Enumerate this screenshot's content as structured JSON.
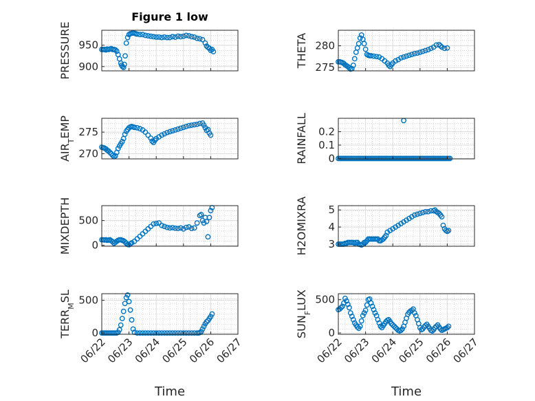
{
  "figure": {
    "title": "Figure 1 low",
    "marker_color": "#0072BD"
  },
  "chart_data": [
    {
      "type": "scatter",
      "ylabel": "PRESSURE",
      "ylabel_sub": "",
      "ylim": [
        890,
        985
      ],
      "yticks": [
        900,
        950
      ],
      "xlim": [
        0,
        5
      ],
      "xtick_labels": [
        "06/22",
        "06/23",
        "06/24",
        "06/25",
        "06/26",
        "06/27"
      ],
      "show_xtick_labels": false,
      "x": [
        0,
        0.05,
        0.1,
        0.15,
        0.2,
        0.25,
        0.3,
        0.35,
        0.4,
        0.45,
        0.5,
        0.55,
        0.6,
        0.65,
        0.7,
        0.73,
        0.76,
        0.8,
        0.83,
        0.86,
        0.9,
        0.95,
        1.0,
        1.05,
        1.1,
        1.15,
        1.2,
        1.25,
        1.3,
        1.4,
        1.5,
        1.6,
        1.7,
        1.8,
        1.9,
        2.0,
        2.1,
        2.2,
        2.3,
        2.4,
        2.5,
        2.6,
        2.7,
        2.8,
        2.9,
        3.0,
        3.1,
        3.2,
        3.3,
        3.4,
        3.5,
        3.6,
        3.7,
        3.8,
        3.85,
        3.9,
        3.95,
        4.0,
        4.05,
        4.1
      ],
      "y": [
        940,
        940,
        940,
        939,
        941,
        940,
        941,
        942,
        940,
        940,
        939,
        936,
        928,
        918,
        908,
        903,
        900,
        898,
        905,
        925,
        955,
        968,
        975,
        977,
        978,
        979,
        978,
        977,
        976,
        975,
        975,
        973,
        972,
        971,
        970,
        969,
        969,
        968,
        969,
        968,
        968,
        970,
        969,
        971,
        970,
        971,
        973,
        972,
        970,
        969,
        966,
        965,
        963,
        955,
        948,
        945,
        943,
        938,
        940,
        935
      ]
    },
    {
      "type": "scatter",
      "ylabel": "THETA",
      "ylabel_sub": "",
      "ylim": [
        274.2,
        283.6
      ],
      "yticks": [
        275,
        280
      ],
      "xlim": [
        0,
        5
      ],
      "xtick_labels": [
        "06/22",
        "06/23",
        "06/24",
        "06/25",
        "06/26",
        "06/27"
      ],
      "show_xtick_labels": false,
      "x": [
        0,
        0.05,
        0.1,
        0.15,
        0.2,
        0.25,
        0.3,
        0.35,
        0.4,
        0.45,
        0.5,
        0.55,
        0.6,
        0.65,
        0.7,
        0.75,
        0.8,
        0.85,
        0.9,
        0.95,
        1.0,
        1.05,
        1.1,
        1.15,
        1.2,
        1.3,
        1.4,
        1.5,
        1.6,
        1.7,
        1.8,
        1.85,
        1.9,
        1.95,
        2.0,
        2.1,
        2.2,
        2.3,
        2.4,
        2.5,
        2.6,
        2.7,
        2.8,
        2.9,
        3.0,
        3.1,
        3.2,
        3.3,
        3.4,
        3.5,
        3.6,
        3.7,
        3.75,
        3.8,
        3.9,
        4.0
      ],
      "y": [
        276.3,
        276.3,
        276.2,
        276.1,
        275.9,
        275.6,
        275.4,
        275.2,
        274.9,
        274.6,
        274.7,
        275.5,
        277.0,
        278.5,
        279.5,
        280.5,
        281.8,
        282.5,
        281.5,
        280.5,
        279.2,
        278.0,
        277.8,
        277.7,
        277.7,
        277.6,
        277.5,
        277.4,
        277.0,
        276.5,
        276.0,
        275.5,
        275.2,
        275.6,
        276.0,
        276.5,
        276.8,
        277.2,
        277.4,
        277.6,
        277.8,
        278.0,
        278.2,
        278.3,
        278.5,
        278.7,
        278.9,
        279.1,
        279.4,
        279.7,
        280.2,
        280.3,
        280.0,
        279.7,
        279.4,
        279.5
      ]
    },
    {
      "type": "scatter",
      "ylabel": "AIR",
      "ylabel_sub": "T",
      "ylabel_after": "EMP",
      "ylim": [
        268.8,
        278.2
      ],
      "yticks": [
        270,
        275
      ],
      "xlim": [
        0,
        5
      ],
      "xtick_labels": [
        "06/22",
        "06/23",
        "06/24",
        "06/25",
        "06/26",
        "06/27"
      ],
      "show_xtick_labels": false,
      "x": [
        0,
        0.05,
        0.1,
        0.15,
        0.2,
        0.25,
        0.3,
        0.35,
        0.4,
        0.45,
        0.5,
        0.55,
        0.6,
        0.65,
        0.7,
        0.75,
        0.8,
        0.85,
        0.9,
        0.95,
        1.0,
        1.05,
        1.1,
        1.15,
        1.2,
        1.3,
        1.4,
        1.5,
        1.6,
        1.7,
        1.8,
        1.85,
        1.9,
        1.95,
        2.0,
        2.1,
        2.2,
        2.3,
        2.4,
        2.5,
        2.6,
        2.7,
        2.8,
        2.9,
        3.0,
        3.1,
        3.2,
        3.3,
        3.4,
        3.5,
        3.6,
        3.7,
        3.75,
        3.8,
        3.85,
        3.9,
        3.95,
        4.0
      ],
      "y": [
        271.5,
        271.4,
        271.3,
        271.1,
        270.8,
        270.6,
        270.3,
        270.0,
        269.6,
        269.3,
        269.5,
        270.3,
        271.2,
        271.8,
        272.3,
        272.8,
        273.5,
        274.5,
        275.2,
        275.6,
        276.0,
        276.2,
        276.3,
        276.2,
        276.1,
        276.0,
        275.8,
        275.5,
        275.0,
        274.3,
        273.6,
        272.9,
        272.6,
        273.1,
        273.5,
        273.9,
        274.3,
        274.6,
        274.9,
        275.1,
        275.3,
        275.5,
        275.7,
        275.9,
        276.1,
        276.3,
        276.5,
        276.6,
        276.7,
        276.8,
        277.0,
        277.1,
        276.6,
        276.0,
        275.4,
        275.6,
        274.8,
        274.3
      ]
    },
    {
      "type": "scatter",
      "ylabel": "RAINFALL",
      "ylabel_sub": "",
      "ylim": [
        -0.003,
        0.3
      ],
      "yticks": [
        0,
        0.1,
        0.2
      ],
      "ytick_labels": [
        "0",
        "0.1",
        "0.2"
      ],
      "xlim": [
        0,
        5
      ],
      "xtick_labels": [
        "06/22",
        "06/23",
        "06/24",
        "06/25",
        "06/26",
        "06/27"
      ],
      "show_xtick_labels": false,
      "x": [
        0,
        0.05,
        0.1,
        0.15,
        0.2,
        0.25,
        0.3,
        0.35,
        0.4,
        0.45,
        0.5,
        0.55,
        0.6,
        0.65,
        0.7,
        0.75,
        0.8,
        0.85,
        0.9,
        0.95,
        1.0,
        1.05,
        1.1,
        1.15,
        1.2,
        1.25,
        1.3,
        1.35,
        1.4,
        1.45,
        1.5,
        1.55,
        1.6,
        1.65,
        1.7,
        1.75,
        1.8,
        1.85,
        1.9,
        1.95,
        2.0,
        2.05,
        2.1,
        2.15,
        2.2,
        2.25,
        2.3,
        2.35,
        2.4,
        2.45,
        2.5,
        2.55,
        2.6,
        2.65,
        2.7,
        2.75,
        2.8,
        2.85,
        2.9,
        2.95,
        3.0,
        3.05,
        3.1,
        3.15,
        3.2,
        3.25,
        3.3,
        3.35,
        3.4,
        3.45,
        3.5,
        3.55,
        3.6,
        3.65,
        3.7,
        3.75,
        3.8,
        3.85,
        3.9,
        3.95,
        4.0,
        4.05,
        4.1,
        2.4
      ],
      "y": [
        0,
        0,
        0,
        0,
        0,
        0,
        0,
        0,
        0,
        0,
        0,
        0,
        0,
        0,
        0,
        0,
        0,
        0,
        0,
        0,
        0,
        0,
        0,
        0,
        0,
        0,
        0,
        0,
        0,
        0,
        0,
        0,
        0,
        0,
        0,
        0,
        0,
        0,
        0,
        0,
        0,
        0,
        0,
        0,
        0,
        0,
        0,
        0,
        0,
        0,
        0,
        0,
        0,
        0,
        0,
        0,
        0,
        0,
        0,
        0,
        0,
        0,
        0,
        0,
        0,
        0,
        0,
        0,
        0,
        0,
        0,
        0,
        0,
        0,
        0,
        0,
        0,
        0,
        0,
        0,
        0,
        0,
        0,
        0.283
      ]
    },
    {
      "type": "scatter",
      "ylabel": "MIXDEPTH",
      "ylabel_sub": "",
      "ylim": [
        -20,
        800
      ],
      "yticks": [
        0,
        500
      ],
      "xlim": [
        0,
        5
      ],
      "xtick_labels": [
        "06/22",
        "06/23",
        "06/24",
        "06/25",
        "06/26",
        "06/27"
      ],
      "show_xtick_labels": false,
      "x": [
        0,
        0.05,
        0.1,
        0.15,
        0.2,
        0.25,
        0.3,
        0.35,
        0.4,
        0.45,
        0.5,
        0.55,
        0.6,
        0.65,
        0.7,
        0.75,
        0.8,
        0.85,
        0.9,
        0.95,
        1.0,
        1.05,
        1.1,
        1.2,
        1.3,
        1.4,
        1.5,
        1.6,
        1.7,
        1.8,
        1.9,
        2.0,
        2.1,
        2.2,
        2.3,
        2.4,
        2.5,
        2.6,
        2.7,
        2.8,
        2.9,
        3.0,
        3.1,
        3.2,
        3.3,
        3.4,
        3.5,
        3.6,
        3.65,
        3.7,
        3.75,
        3.8,
        3.85,
        3.9,
        3.95,
        4.0,
        4.05
      ],
      "y": [
        110,
        110,
        105,
        110,
        100,
        105,
        110,
        90,
        70,
        40,
        60,
        80,
        100,
        110,
        110,
        100,
        90,
        70,
        40,
        15,
        10,
        30,
        50,
        80,
        130,
        180,
        230,
        280,
        330,
        380,
        430,
        440,
        450,
        400,
        380,
        360,
        350,
        355,
        345,
        340,
        350,
        330,
        360,
        370,
        340,
        350,
        450,
        600,
        620,
        500,
        450,
        560,
        480,
        170,
        560,
        700,
        760
      ]
    },
    {
      "type": "scatter",
      "ylabel": "H2OMIXRA",
      "ylabel_sub": "",
      "ylim": [
        2.88,
        5.25
      ],
      "yticks": [
        3,
        4,
        5
      ],
      "xlim": [
        0,
        5
      ],
      "xtick_labels": [
        "06/22",
        "06/23",
        "06/24",
        "06/25",
        "06/26",
        "06/27"
      ],
      "show_xtick_labels": false,
      "x": [
        0,
        0.05,
        0.1,
        0.15,
        0.2,
        0.25,
        0.3,
        0.35,
        0.4,
        0.45,
        0.5,
        0.55,
        0.6,
        0.65,
        0.7,
        0.75,
        0.8,
        0.85,
        0.9,
        0.95,
        1.0,
        1.05,
        1.1,
        1.15,
        1.2,
        1.25,
        1.3,
        1.35,
        1.4,
        1.45,
        1.5,
        1.55,
        1.6,
        1.65,
        1.7,
        1.75,
        1.8,
        1.9,
        2.0,
        2.1,
        2.2,
        2.3,
        2.4,
        2.5,
        2.6,
        2.7,
        2.8,
        2.9,
        3.0,
        3.1,
        3.2,
        3.3,
        3.4,
        3.5,
        3.55,
        3.6,
        3.65,
        3.7,
        3.75,
        3.8,
        3.85,
        3.9,
        3.95,
        4.0,
        4.05
      ],
      "y": [
        3.0,
        3.0,
        3.0,
        3.0,
        3.0,
        3.05,
        3.05,
        3.1,
        3.1,
        3.1,
        3.1,
        3.1,
        3.05,
        3.1,
        3.1,
        3.0,
        2.98,
        2.95,
        3.0,
        3.1,
        3.1,
        3.2,
        3.3,
        3.3,
        3.3,
        3.3,
        3.3,
        3.3,
        3.3,
        3.3,
        3.2,
        3.2,
        3.25,
        3.3,
        3.4,
        3.5,
        3.7,
        3.8,
        3.9,
        4.0,
        4.1,
        4.2,
        4.3,
        4.4,
        4.5,
        4.6,
        4.7,
        4.75,
        4.8,
        4.85,
        4.9,
        4.9,
        4.95,
        4.95,
        5.0,
        4.9,
        4.85,
        4.8,
        4.7,
        4.6,
        4.1,
        3.9,
        3.8,
        3.75,
        3.8
      ]
    },
    {
      "type": "scatter",
      "ylabel": "TERR",
      "ylabel_sub": "M",
      "ylabel_after": "SL",
      "ylim": [
        -20,
        600
      ],
      "yticks": [
        0,
        500
      ],
      "xlim": [
        0,
        5
      ],
      "xtick_labels": [
        "06/22",
        "06/23",
        "06/24",
        "06/25",
        "06/26",
        "06/27"
      ],
      "show_xtick_labels": true,
      "x": [
        0,
        0.05,
        0.1,
        0.15,
        0.2,
        0.25,
        0.3,
        0.35,
        0.4,
        0.45,
        0.5,
        0.55,
        0.6,
        0.65,
        0.7,
        0.75,
        0.8,
        0.85,
        0.9,
        0.95,
        1.0,
        1.05,
        1.1,
        1.15,
        1.2,
        1.3,
        1.4,
        1.5,
        1.6,
        1.7,
        1.8,
        1.9,
        2.0,
        2.1,
        2.2,
        2.3,
        2.4,
        2.5,
        2.6,
        2.7,
        2.8,
        2.9,
        3.0,
        3.1,
        3.2,
        3.3,
        3.4,
        3.5,
        3.55,
        3.6,
        3.65,
        3.7,
        3.75,
        3.8,
        3.85,
        3.9,
        3.95,
        4.0,
        4.05
      ],
      "y": [
        0,
        0,
        0,
        0,
        0,
        0,
        0,
        0,
        0,
        0,
        0,
        0,
        10,
        50,
        120,
        220,
        330,
        450,
        540,
        580,
        480,
        350,
        200,
        60,
        10,
        0,
        0,
        0,
        0,
        0,
        0,
        0,
        0,
        0,
        0,
        0,
        0,
        0,
        0,
        0,
        0,
        0,
        0,
        0,
        0,
        0,
        0,
        0,
        0,
        5,
        20,
        60,
        100,
        140,
        170,
        190,
        220,
        250,
        290
      ]
    },
    {
      "type": "scatter",
      "ylabel": "SUN",
      "ylabel_sub": "F",
      "ylabel_after": "LUX",
      "ylim": [
        -20,
        590
      ],
      "yticks": [
        0,
        500
      ],
      "xlim": [
        0,
        5
      ],
      "xtick_labels": [
        "06/22",
        "06/23",
        "06/24",
        "06/25",
        "06/26",
        "06/27"
      ],
      "show_xtick_labels": true,
      "x": [
        0,
        0.05,
        0.1,
        0.15,
        0.2,
        0.25,
        0.3,
        0.35,
        0.4,
        0.45,
        0.5,
        0.55,
        0.6,
        0.65,
        0.7,
        0.75,
        0.8,
        0.85,
        0.9,
        0.95,
        1.0,
        1.05,
        1.1,
        1.15,
        1.2,
        1.25,
        1.3,
        1.35,
        1.4,
        1.45,
        1.5,
        1.55,
        1.6,
        1.65,
        1.7,
        1.75,
        1.8,
        1.85,
        1.9,
        1.95,
        2.0,
        2.05,
        2.1,
        2.15,
        2.2,
        2.25,
        2.3,
        2.35,
        2.4,
        2.45,
        2.5,
        2.55,
        2.6,
        2.65,
        2.7,
        2.75,
        2.8,
        2.85,
        2.9,
        2.95,
        3.0,
        3.05,
        3.1,
        3.15,
        3.2,
        3.25,
        3.3,
        3.35,
        3.4,
        3.45,
        3.5,
        3.55,
        3.6,
        3.65,
        3.7,
        3.75,
        3.8,
        3.85,
        3.9,
        3.95,
        4.0,
        4.05
      ],
      "y": [
        350,
        360,
        380,
        400,
        450,
        520,
        480,
        430,
        380,
        300,
        250,
        200,
        150,
        120,
        90,
        70,
        100,
        180,
        260,
        300,
        340,
        420,
        500,
        510,
        450,
        400,
        350,
        300,
        260,
        200,
        150,
        100,
        80,
        110,
        140,
        170,
        190,
        200,
        170,
        140,
        120,
        100,
        80,
        60,
        40,
        30,
        40,
        60,
        100,
        160,
        220,
        280,
        310,
        330,
        340,
        360,
        300,
        260,
        200,
        140,
        80,
        50,
        60,
        90,
        110,
        130,
        100,
        70,
        40,
        30,
        50,
        80,
        100,
        120,
        90,
        60,
        40,
        50,
        60,
        70,
        80,
        100
      ]
    }
  ],
  "xlabels": {
    "left": "Time",
    "right": "Time"
  }
}
